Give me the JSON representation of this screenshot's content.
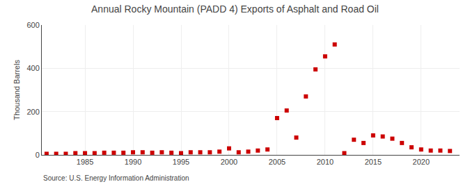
{
  "chart_data": {
    "type": "scatter",
    "title": "Annual Rocky Mountain (PADD 4) Exports of Asphalt and Road Oil",
    "ylabel": "Thousand Barrels",
    "source": "Source: U.S. Energy Information Administration",
    "x": [
      1981,
      1982,
      1983,
      1984,
      1985,
      1986,
      1987,
      1988,
      1989,
      1990,
      1991,
      1992,
      1993,
      1994,
      1995,
      1996,
      1997,
      1998,
      1999,
      2000,
      2001,
      2002,
      2003,
      2004,
      2005,
      2006,
      2007,
      2008,
      2009,
      2010,
      2011,
      2012,
      2013,
      2014,
      2015,
      2016,
      2017,
      2018,
      2019,
      2020,
      2021,
      2022,
      2023
    ],
    "values": [
      5,
      5,
      5,
      8,
      8,
      8,
      10,
      10,
      10,
      12,
      12,
      10,
      12,
      10,
      8,
      12,
      12,
      12,
      15,
      30,
      12,
      15,
      20,
      25,
      170,
      205,
      80,
      270,
      395,
      455,
      510,
      8,
      70,
      55,
      90,
      85,
      75,
      55,
      35,
      25,
      20,
      20,
      18
    ],
    "color": "#cc0000",
    "marker": "square",
    "xlim": [
      1980.5,
      2024
    ],
    "xticks": [
      1985,
      1990,
      1995,
      2000,
      2005,
      2010,
      2015,
      2020
    ],
    "ylim": [
      0,
      600
    ],
    "yticks": [
      0,
      200,
      400,
      600
    ],
    "grid": true
  }
}
